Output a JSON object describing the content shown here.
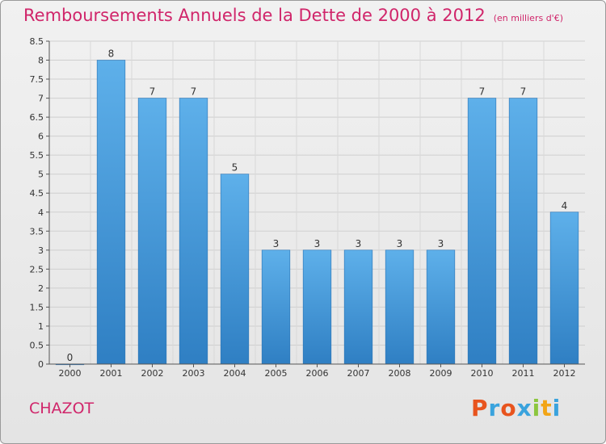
{
  "chart_data": {
    "type": "bar",
    "title": "Remboursements Annuels de la Dette de 2000 à 2012",
    "subtitle": "(en milliers d'€)",
    "categories": [
      "2000",
      "2001",
      "2002",
      "2003",
      "2004",
      "2005",
      "2006",
      "2007",
      "2008",
      "2009",
      "2010",
      "2011",
      "2012"
    ],
    "values": [
      0,
      8,
      7,
      7,
      5,
      3,
      3,
      3,
      3,
      3,
      7,
      7,
      4
    ],
    "data_labels": [
      "0",
      "8",
      "7",
      "7",
      "5",
      "3",
      "3",
      "3",
      "3",
      "3",
      "7",
      "7",
      "4"
    ],
    "ylim": [
      0,
      8.5
    ],
    "yticks": [
      "0",
      "0.5",
      "1",
      "1.5",
      "2",
      "2.5",
      "3",
      "3.5",
      "4",
      "4.5",
      "5",
      "5.5",
      "6",
      "6.5",
      "7",
      "7.5",
      "8",
      "8.5"
    ],
    "grid": true,
    "bar_color_top": "#5eb0ea",
    "bar_color_bottom": "#2f7fc3"
  },
  "commune": "CHAZOT",
  "brand": {
    "letters": [
      "P",
      "r",
      "o",
      "x",
      "i",
      "t",
      "i"
    ],
    "colors": [
      "#e8541e",
      "#3aa3dd",
      "#e8541e",
      "#3aa3dd",
      "#8cc63f",
      "#f2a516",
      "#3aa3dd"
    ]
  },
  "colors": {
    "accent": "#d0256a"
  }
}
